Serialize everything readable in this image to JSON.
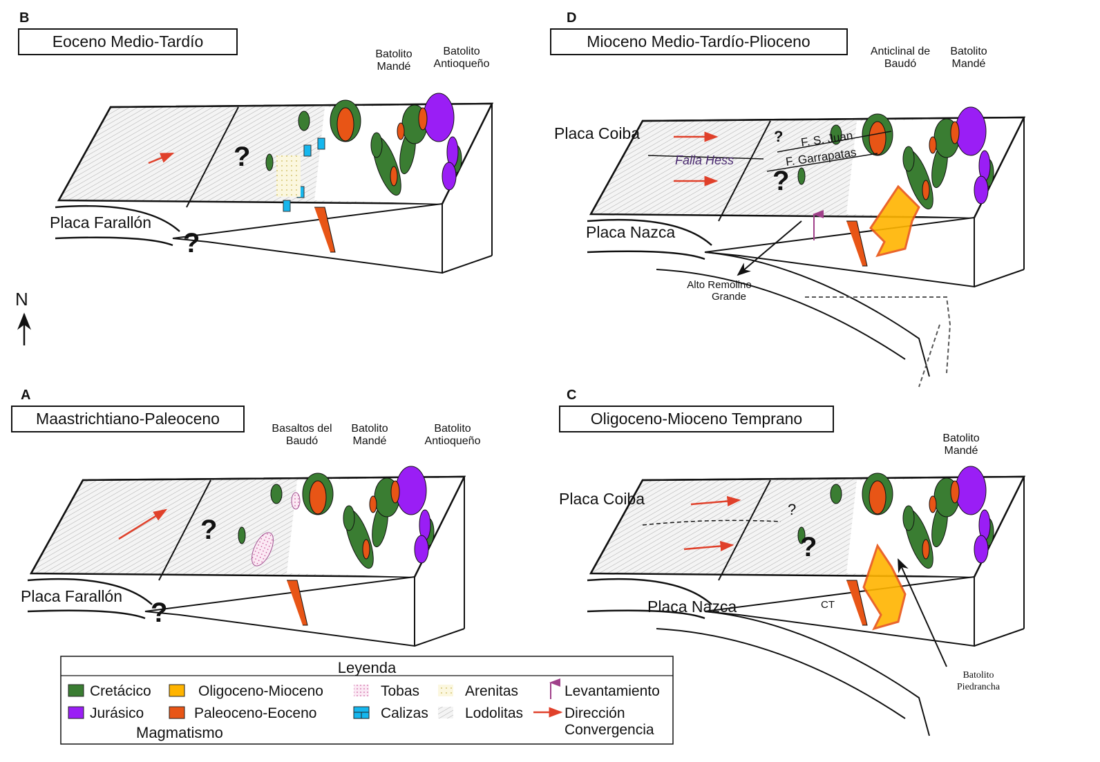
{
  "panels": {
    "B": {
      "letter": "B",
      "title": "Eoceno Medio-Tardío",
      "plate": "Placa Farallón",
      "labels": {
        "mande": [
          "Batolito",
          "Mandé"
        ],
        "antioqueno": [
          "Batolito",
          "Antioqueño"
        ]
      }
    },
    "A": {
      "letter": "A",
      "title": "Maastrichtiano-Paleoceno",
      "plate": "Placa Farallón",
      "labels": {
        "baudo": [
          "Basaltos del",
          "Baudó"
        ],
        "mande": [
          "Batolito",
          "Mandé"
        ],
        "antioqueno": [
          "Batolito",
          "Antioqueño"
        ]
      }
    },
    "D": {
      "letter": "D",
      "title": "Mioceno Medio-Tardío-Plioceno",
      "plate_upper": "Placa Coiba",
      "plate_lower": "Placa Nazca",
      "fault_hess": "Falla Hess",
      "fault_sjuan": "F. S. Juan",
      "fault_garrapatas": "F. Garrapatas",
      "labels": {
        "anticlinal": [
          "Anticlinal de",
          "Baudó"
        ],
        "mande": [
          "Batolito",
          "Mandé"
        ],
        "remolino": [
          "Alto Remolino",
          "Grande"
        ]
      }
    },
    "C": {
      "letter": "C",
      "title": "Oligoceno-Mioceno Temprano",
      "plate_upper": "Placa Coiba",
      "plate_lower": "Placa Nazca",
      "ct": "CT",
      "labels": {
        "mande": [
          "Batolito",
          "Mandé"
        ],
        "piedrancha": [
          "Batolito",
          "Piedrancha"
        ]
      }
    }
  },
  "question_mark": "?",
  "north": "N",
  "legend": {
    "title": "Leyenda",
    "items": [
      {
        "label": "Cretácico",
        "color": "#3a7d32"
      },
      {
        "label": "Oligoceno-Mioceno",
        "color": "#ffb400"
      },
      {
        "label": "Tobas",
        "pattern": "dots-pink"
      },
      {
        "label": "Arenitas",
        "pattern": "dots-yellow"
      },
      {
        "label": "Levantamiento",
        "icon": "arrow-up-purple"
      },
      {
        "label": "Jurásico",
        "color": "#9a1ef5"
      },
      {
        "label": "Paleoceno-Eoceno",
        "color": "#e85516"
      },
      {
        "label": "Calizas",
        "color": "#16b7ee"
      },
      {
        "label": "Lodolitas",
        "pattern": "hatch"
      },
      {
        "label": "Dirección Convergencia",
        "label_lines": [
          "Dirección",
          "Convergencia"
        ],
        "icon": "arrow-right-red"
      }
    ],
    "magmatismo": "Magmatismo"
  },
  "colors": {
    "cretacico": "#3a7d32",
    "jurasico": "#9a1ef5",
    "paleoceno": "#e85516",
    "oligoceno": "#ffb400",
    "calizas": "#16b7ee",
    "convergence": "#e0402a",
    "uplift": "#a0408a"
  }
}
